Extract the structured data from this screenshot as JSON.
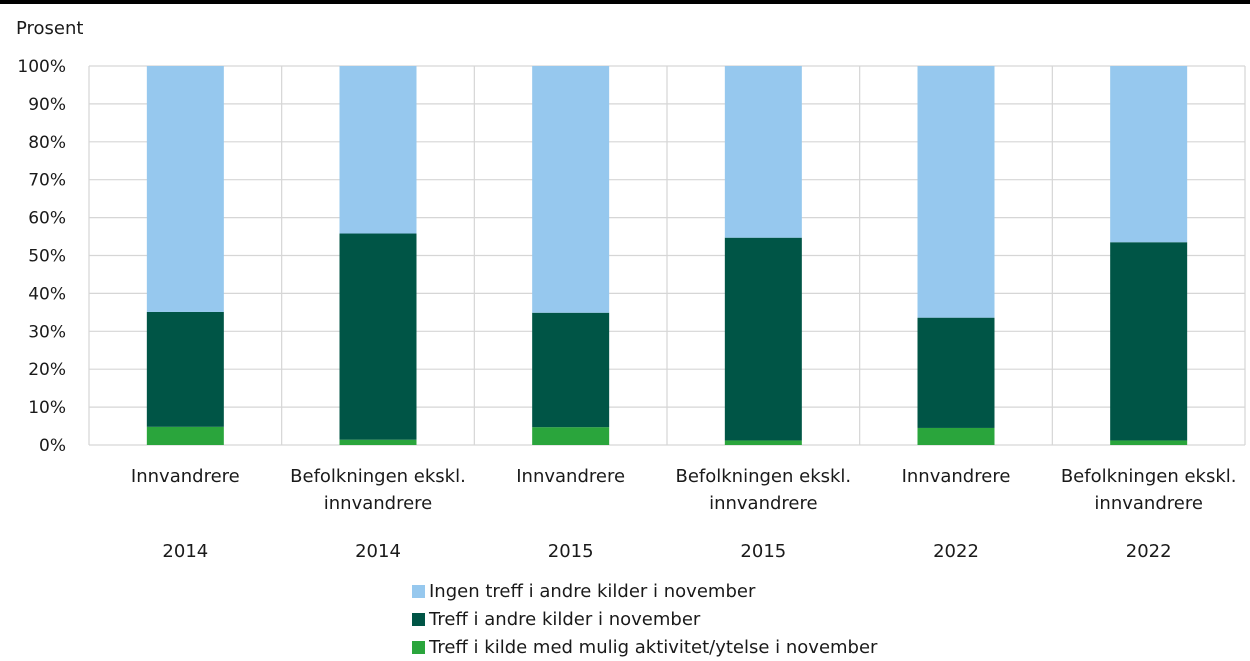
{
  "chart_data": {
    "type": "bar",
    "stacked": true,
    "ylabel": "Prosent",
    "ylim": [
      0,
      100
    ],
    "yticks": [
      "0%",
      "10%",
      "20%",
      "30%",
      "40%",
      "50%",
      "60%",
      "70%",
      "80%",
      "90%",
      "100%"
    ],
    "categories": [
      {
        "group": "Innvandrere",
        "year": "2014"
      },
      {
        "group": "Befolkningen ekskl. innvandrere",
        "year": "2014"
      },
      {
        "group": "Innvandrere",
        "year": "2015"
      },
      {
        "group": "Befolkningen ekskl. innvandrere",
        "year": "2015"
      },
      {
        "group": "Innvandrere",
        "year": "2022"
      },
      {
        "group": "Befolkningen ekskl. innvandrere",
        "year": "2022"
      }
    ],
    "series": [
      {
        "name": "Treff i kilde med mulig aktivitet/ytelse i november",
        "color": "#2aa53c",
        "values": [
          4.8,
          1.4,
          4.7,
          1.2,
          4.5,
          1.2
        ]
      },
      {
        "name": "Treff i andre kilder i november",
        "color": "#005546",
        "values": [
          30.3,
          54.4,
          30.2,
          53.5,
          29.1,
          52.3
        ]
      },
      {
        "name": "Ingen treff i andre kilder i november",
        "color": "#96c8ee",
        "values": [
          64.9,
          44.2,
          65.1,
          45.3,
          66.4,
          46.5
        ]
      }
    ],
    "legend_order": [
      2,
      1,
      0
    ],
    "legend_position": "bottom",
    "grid": true
  }
}
